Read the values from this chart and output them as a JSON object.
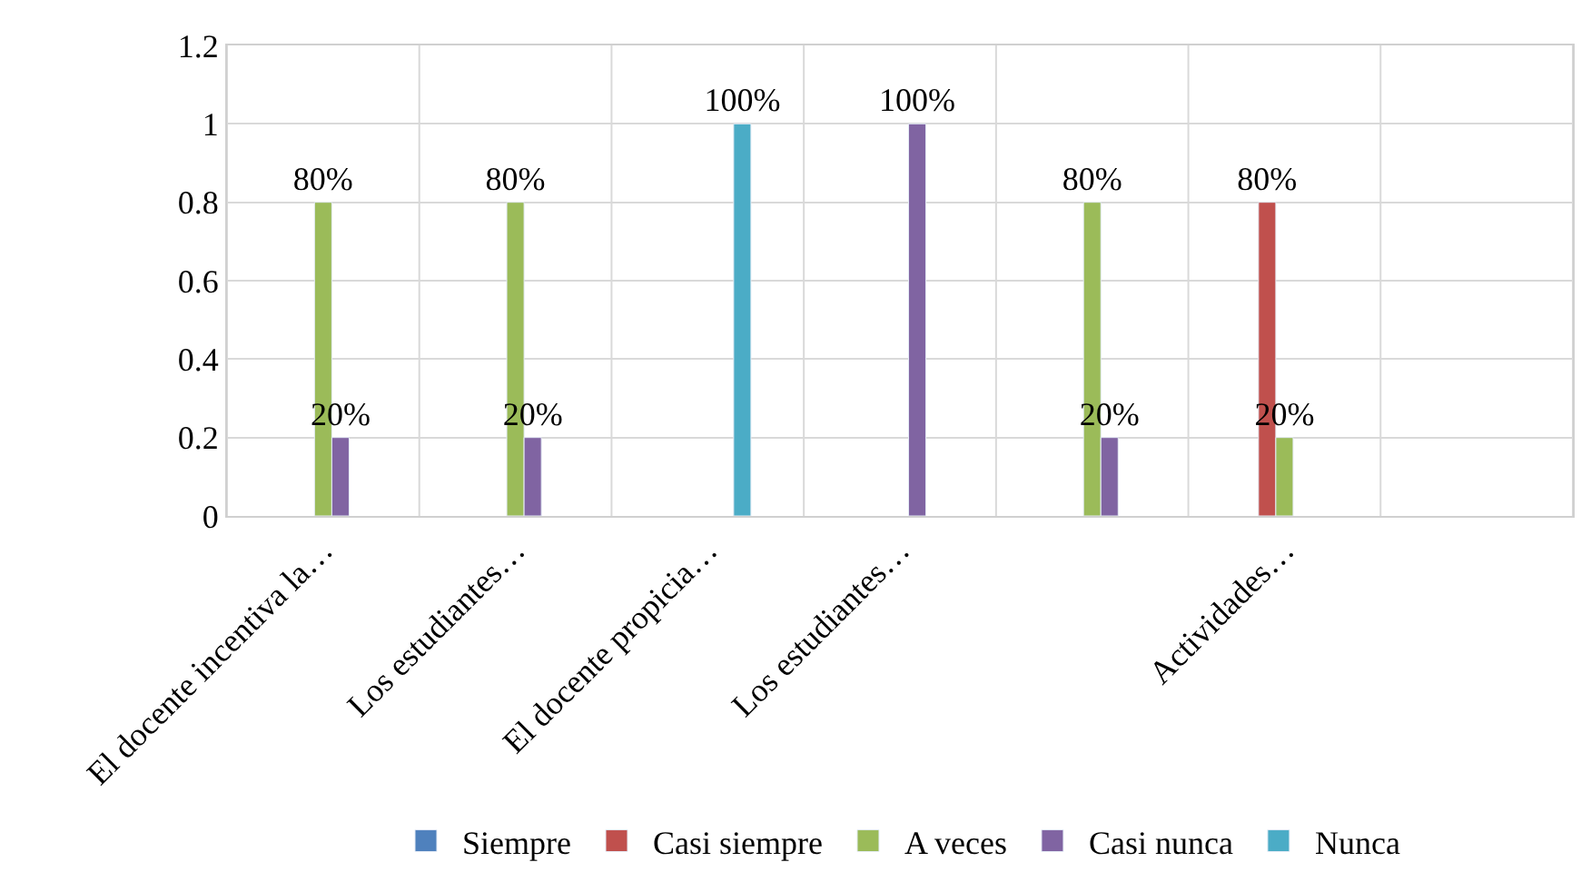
{
  "chart_data": {
    "type": "bar",
    "categories": [
      "El docente incentiva la…",
      "Los estudiantes…",
      "El docente propicia…",
      "Los estudiantes…",
      null,
      "Actividades…",
      null
    ],
    "series": [
      {
        "name": "Siempre",
        "color": "#4f81bd",
        "values": [
          null,
          null,
          null,
          null,
          null,
          null,
          null
        ],
        "value_labels": [
          null,
          null,
          null,
          null,
          null,
          null,
          null
        ]
      },
      {
        "name": "Casi siempre",
        "color": "#c0504d",
        "values": [
          null,
          null,
          null,
          null,
          null,
          0.8,
          null
        ],
        "value_labels": [
          null,
          null,
          null,
          null,
          null,
          "80%",
          null
        ]
      },
      {
        "name": "A veces",
        "color": "#9bbb59",
        "values": [
          0.8,
          0.8,
          null,
          null,
          0.8,
          0.2,
          null
        ],
        "value_labels": [
          "80%",
          "80%",
          null,
          null,
          "80%",
          "20%",
          null
        ]
      },
      {
        "name": "Casi nunca",
        "color": "#8064a2",
        "values": [
          0.2,
          0.2,
          null,
          1,
          0.2,
          null,
          null
        ],
        "value_labels": [
          "20%",
          "20%",
          null,
          "100%",
          "20%",
          null,
          null
        ]
      },
      {
        "name": "Nunca",
        "color": "#4bacc6",
        "values": [
          null,
          null,
          1,
          null,
          null,
          null,
          null
        ],
        "value_labels": [
          null,
          null,
          "100%",
          null,
          null,
          null,
          null
        ]
      }
    ],
    "ylim": [
      0,
      1.2
    ],
    "yticks": [
      0,
      0.2,
      0.4,
      0.6,
      0.8,
      1,
      1.2
    ],
    "grid": true,
    "legend": "bottom"
  }
}
